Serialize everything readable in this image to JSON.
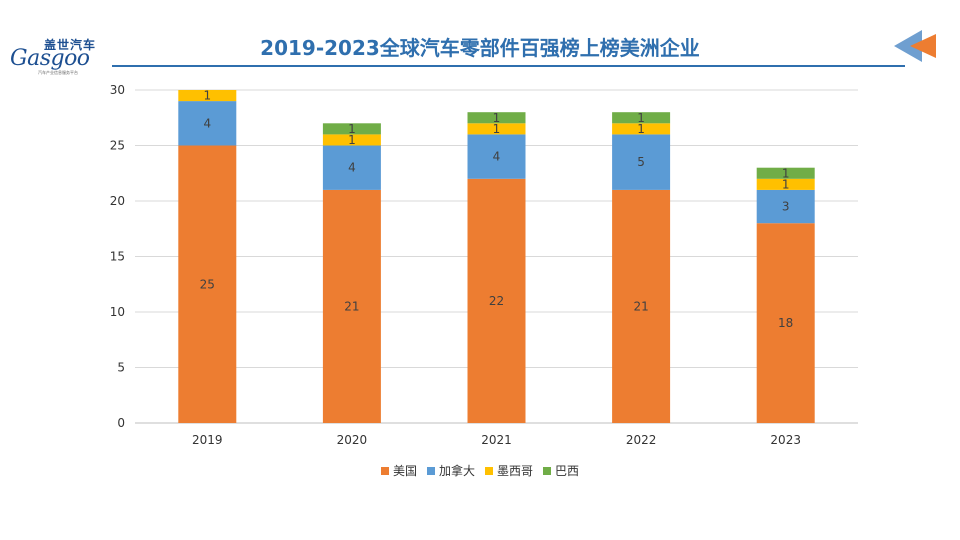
{
  "header": {
    "title": "2019-2023全球汽车零部件百强榜上榜美洲企业",
    "logo_cn": "盖世汽车",
    "logo_en": "Gasgoo",
    "logo_sub": "汽车产业信息服务平台"
  },
  "chart_data": {
    "type": "bar",
    "stacked": true,
    "title": "2019-2023全球汽车零部件百强榜上榜美洲企业",
    "categories": [
      "2019",
      "2020",
      "2021",
      "2022",
      "2023"
    ],
    "series": [
      {
        "name": "美国",
        "color": "#ED7D31",
        "values": [
          25,
          21,
          22,
          21,
          18
        ]
      },
      {
        "name": "加拿大",
        "color": "#5B9BD5",
        "values": [
          4,
          4,
          4,
          5,
          3
        ]
      },
      {
        "name": "墨西哥",
        "color": "#FFC000",
        "values": [
          1,
          1,
          1,
          1,
          1
        ]
      },
      {
        "name": "巴西",
        "color": "#70AD47",
        "values": [
          0,
          1,
          1,
          1,
          1
        ]
      }
    ],
    "ylim": [
      0,
      30
    ],
    "yticks": [
      0,
      5,
      10,
      15,
      20,
      25,
      30
    ],
    "grid": true,
    "legend": "bottom"
  }
}
